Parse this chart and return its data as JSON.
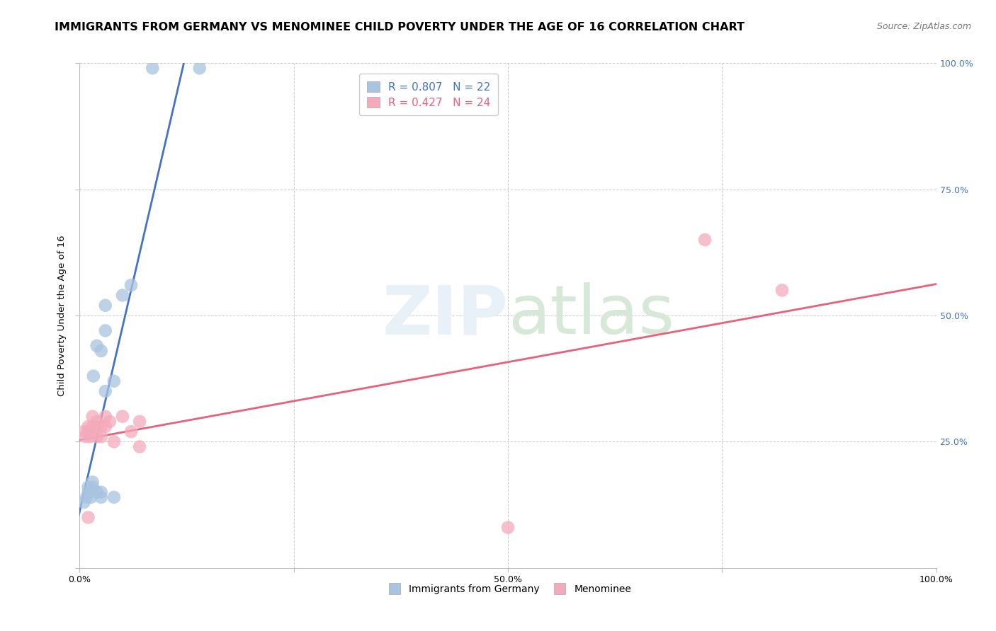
{
  "title": "IMMIGRANTS FROM GERMANY VS MENOMINEE CHILD POVERTY UNDER THE AGE OF 16 CORRELATION CHART",
  "source": "Source: ZipAtlas.com",
  "ylabel": "Child Poverty Under the Age of 16",
  "blue_r": 0.807,
  "blue_n": 22,
  "pink_r": 0.427,
  "pink_n": 24,
  "blue_color": "#A8C4E0",
  "pink_color": "#F4AABB",
  "blue_line_color": "#4472C4",
  "pink_line_color": "#E8607A",
  "right_tick_color": "#4472C4",
  "watermark_color": "#DDEEFF",
  "title_fontsize": 11.5,
  "source_fontsize": 9,
  "label_fontsize": 9.5,
  "tick_fontsize": 9,
  "legend_fontsize": 11,
  "background_color": "#FFFFFF",
  "grid_color": "#CCCCCC",
  "blue_points_x": [
    0.005,
    0.008,
    0.01,
    0.01,
    0.013,
    0.015,
    0.015,
    0.016,
    0.02,
    0.02,
    0.025,
    0.025,
    0.025,
    0.03,
    0.03,
    0.03,
    0.04,
    0.04,
    0.05,
    0.06,
    0.085,
    0.14
  ],
  "blue_points_y": [
    0.13,
    0.14,
    0.15,
    0.16,
    0.14,
    0.16,
    0.17,
    0.38,
    0.15,
    0.44,
    0.14,
    0.15,
    0.43,
    0.47,
    0.52,
    0.35,
    0.14,
    0.37,
    0.54,
    0.56,
    0.99,
    0.99
  ],
  "pink_points_x": [
    0.005,
    0.007,
    0.01,
    0.01,
    0.01,
    0.012,
    0.015,
    0.015,
    0.02,
    0.02,
    0.02,
    0.025,
    0.025,
    0.03,
    0.03,
    0.035,
    0.04,
    0.05,
    0.06,
    0.07,
    0.07,
    0.5,
    0.73,
    0.82
  ],
  "pink_points_y": [
    0.27,
    0.26,
    0.27,
    0.28,
    0.1,
    0.26,
    0.28,
    0.3,
    0.26,
    0.28,
    0.29,
    0.26,
    0.28,
    0.28,
    0.3,
    0.29,
    0.25,
    0.3,
    0.27,
    0.24,
    0.29,
    0.08,
    0.65,
    0.55
  ],
  "xlim": [
    0.0,
    1.0
  ],
  "ylim": [
    0.0,
    1.0
  ],
  "xtick_positions": [
    0.0,
    0.25,
    0.5,
    0.75,
    1.0
  ],
  "xtick_labels": [
    "0.0%",
    "",
    "50.0%",
    "",
    "100.0%"
  ],
  "ytick_positions": [
    0.0,
    0.25,
    0.5,
    0.75,
    1.0
  ],
  "ytick_labels_left": [
    "",
    "25.0%",
    "50.0%",
    "75.0%",
    "100.0%"
  ],
  "ytick_labels_right": [
    "",
    "25.0%",
    "50.0%",
    "75.0%",
    "100.0%"
  ]
}
